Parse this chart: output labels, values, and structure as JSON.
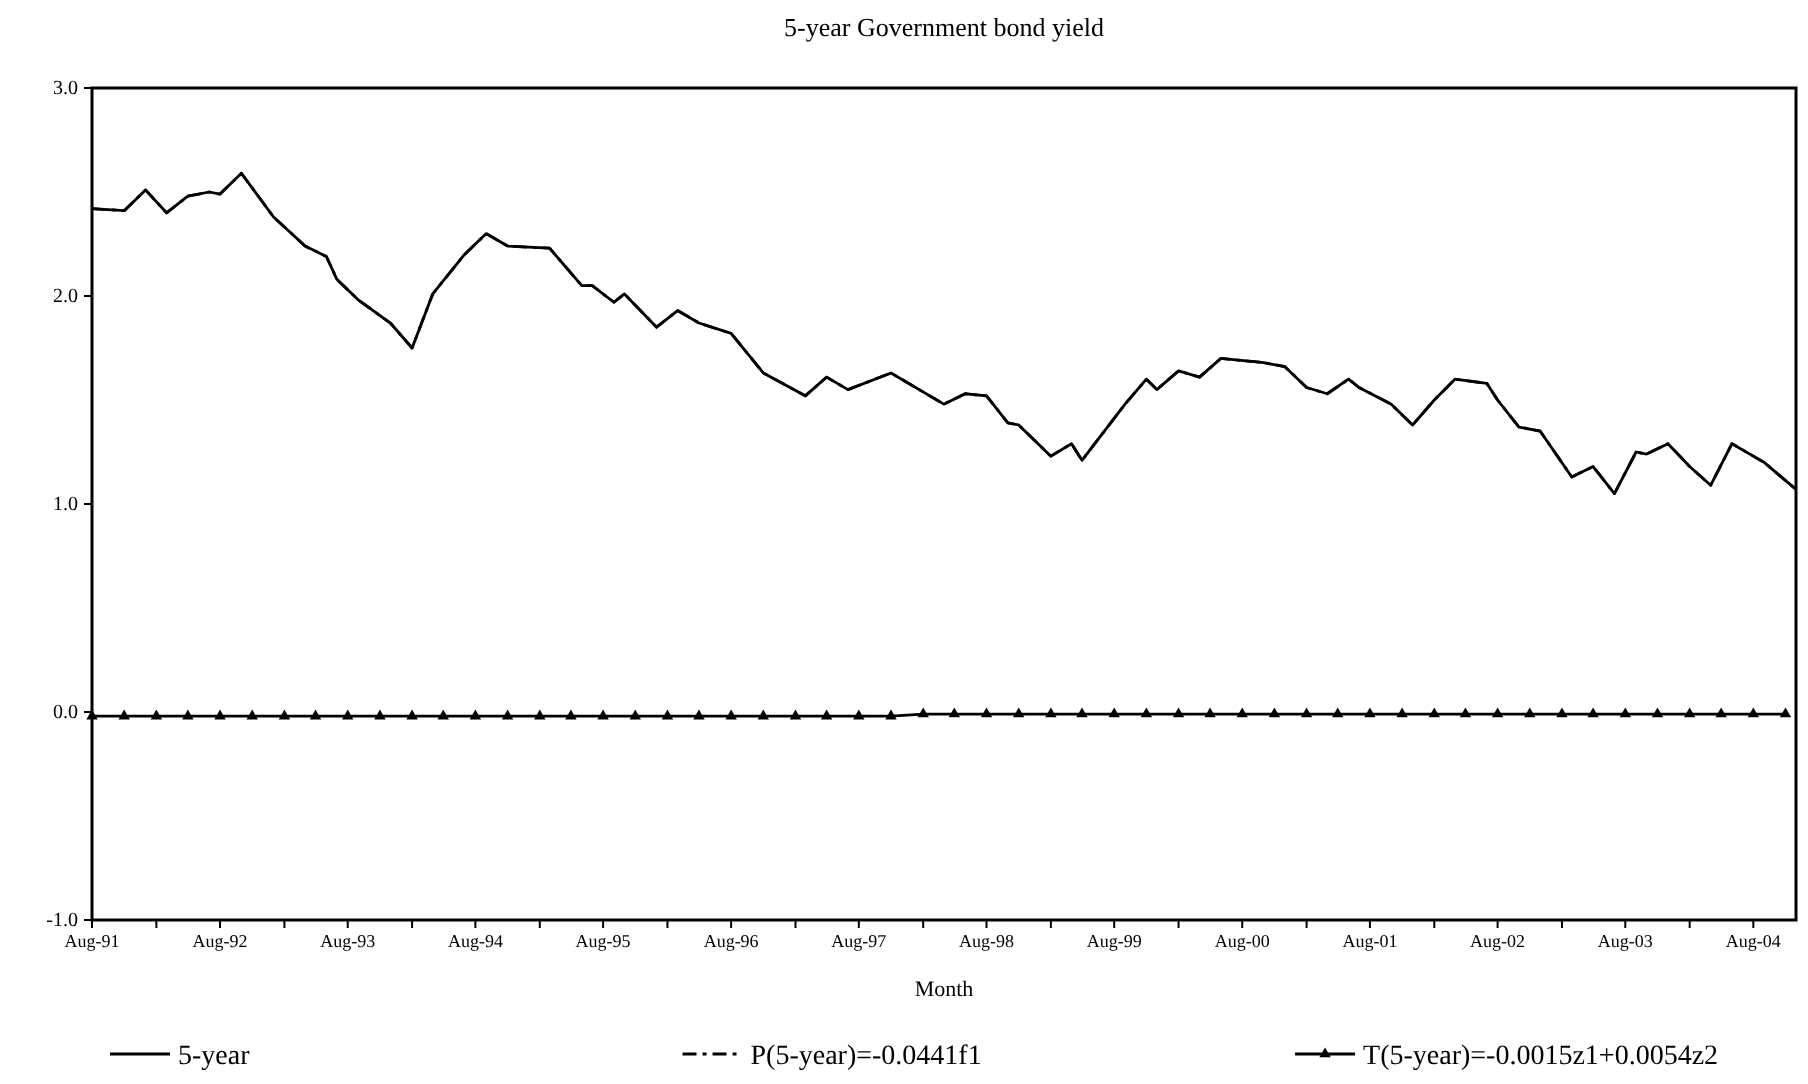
{
  "chart_data": {
    "type": "line",
    "title": "5-year Government bond yield",
    "xlabel": "Month",
    "xlim": [
      "1991-08",
      "2004-12"
    ],
    "xticks": [
      {
        "value": "1991-08",
        "label": "Aug-91"
      },
      {
        "value": "1992-02",
        "label": null
      },
      {
        "value": "1992-08",
        "label": "Aug-92"
      },
      {
        "value": "1993-02",
        "label": null
      },
      {
        "value": "1993-08",
        "label": "Aug-93"
      },
      {
        "value": "1994-02",
        "label": null
      },
      {
        "value": "1994-08",
        "label": "Aug-94"
      },
      {
        "value": "1995-02",
        "label": null
      },
      {
        "value": "1995-08",
        "label": "Aug-95"
      },
      {
        "value": "1996-02",
        "label": null
      },
      {
        "value": "1996-08",
        "label": "Aug-96"
      },
      {
        "value": "1997-02",
        "label": null
      },
      {
        "value": "1997-08",
        "label": "Aug-97"
      },
      {
        "value": "1998-02",
        "label": null
      },
      {
        "value": "1998-08",
        "label": "Aug-98"
      },
      {
        "value": "1999-02",
        "label": null
      },
      {
        "value": "1999-08",
        "label": "Aug-99"
      },
      {
        "value": "2000-02",
        "label": null
      },
      {
        "value": "2000-08",
        "label": "Aug-00"
      },
      {
        "value": "2001-02",
        "label": null
      },
      {
        "value": "2001-08",
        "label": "Aug-01"
      },
      {
        "value": "2002-02",
        "label": null
      },
      {
        "value": "2002-08",
        "label": "Aug-02"
      },
      {
        "value": "2003-02",
        "label": null
      },
      {
        "value": "2003-08",
        "label": "Aug-03"
      },
      {
        "value": "2004-02",
        "label": null
      },
      {
        "value": "2004-08",
        "label": "Aug-04"
      }
    ],
    "ylim": [
      -1,
      3
    ],
    "yticks": [
      {
        "value": -1,
        "label": "-1.0"
      },
      {
        "value": 0,
        "label": "0.0"
      },
      {
        "value": 1,
        "label": "1.0"
      },
      {
        "value": 2,
        "label": "2.0"
      },
      {
        "value": 3,
        "label": "3.0"
      }
    ],
    "grid": false,
    "legend": "bottom",
    "series": [
      {
        "name": "5-year",
        "color": "#000000",
        "line_style": "solid",
        "marker": "none",
        "x": [
          "1991-08",
          "1991-11",
          "1992-01",
          "1992-03",
          "1992-05",
          "1992-07",
          "1992-08",
          "1992-10",
          "1993-01",
          "1993-04",
          "1993-06",
          "1993-07",
          "1993-09",
          "1993-12",
          "1994-02",
          "1994-04",
          "1994-07",
          "1994-09",
          "1994-11",
          "1995-03",
          "1995-06",
          "1995-07",
          "1995-09",
          "1995-10",
          "1996-01",
          "1996-03",
          "1996-05",
          "1996-08",
          "1996-11",
          "1997-03",
          "1997-05",
          "1997-07",
          "1997-11",
          "1998-04",
          "1998-06",
          "1998-08",
          "1998-10",
          "1998-11",
          "1999-02",
          "1999-04",
          "1999-05",
          "1999-09",
          "1999-11",
          "1999-12",
          "2000-02",
          "2000-04",
          "2000-06",
          "2000-10",
          "2000-12",
          "2001-02",
          "2001-04",
          "2001-06",
          "2001-07",
          "2001-10",
          "2001-12",
          "2002-02",
          "2002-04",
          "2002-07",
          "2002-08",
          "2002-10",
          "2002-12",
          "2003-03",
          "2003-05",
          "2003-07",
          "2003-09",
          "2003-10",
          "2003-12",
          "2004-02",
          "2004-04",
          "2004-06",
          "2004-09",
          "2004-12"
        ],
        "values": [
          2.42,
          2.41,
          2.51,
          2.4,
          2.48,
          2.5,
          2.49,
          2.59,
          2.38,
          2.24,
          2.19,
          2.08,
          1.98,
          1.87,
          1.75,
          2.01,
          2.2,
          2.3,
          2.24,
          2.23,
          2.05,
          2.05,
          1.97,
          2.01,
          1.85,
          1.93,
          1.87,
          1.82,
          1.63,
          1.52,
          1.61,
          1.55,
          1.63,
          1.48,
          1.53,
          1.52,
          1.39,
          1.38,
          1.23,
          1.29,
          1.21,
          1.48,
          1.6,
          1.55,
          1.64,
          1.61,
          1.7,
          1.68,
          1.66,
          1.56,
          1.53,
          1.6,
          1.56,
          1.48,
          1.38,
          1.5,
          1.6,
          1.58,
          1.5,
          1.37,
          1.35,
          1.13,
          1.18,
          1.05,
          1.25,
          1.24,
          1.29,
          1.18,
          1.09,
          1.29,
          1.2,
          1.07
        ]
      },
      {
        "name": "P(5-year)=-0.0441f1",
        "color": "#000000",
        "line_style": "dashed",
        "marker": "none",
        "x": [
          "1991-08",
          "1991-11",
          "1992-01",
          "1992-03",
          "1992-05",
          "1992-07",
          "1992-08",
          "1992-10",
          "1993-01",
          "1993-04",
          "1993-06",
          "1993-07",
          "1993-09",
          "1993-12",
          "1994-02",
          "1994-04",
          "1994-07",
          "1994-09",
          "1994-11",
          "1995-03",
          "1995-06",
          "1995-07",
          "1995-09",
          "1995-10",
          "1996-01",
          "1996-03",
          "1996-05",
          "1996-08",
          "1996-11",
          "1997-03",
          "1997-05",
          "1997-07",
          "1997-11",
          "1998-04",
          "1998-06",
          "1998-08",
          "1998-10",
          "1998-11",
          "1999-02",
          "1999-04",
          "1999-05",
          "1999-09",
          "1999-11",
          "1999-12",
          "2000-02",
          "2000-04",
          "2000-06",
          "2000-10",
          "2000-12",
          "2001-02",
          "2001-04",
          "2001-06",
          "2001-07",
          "2001-10",
          "2001-12",
          "2002-02",
          "2002-04",
          "2002-07",
          "2002-08",
          "2002-10",
          "2002-12",
          "2003-03",
          "2003-05",
          "2003-07",
          "2003-09",
          "2003-10",
          "2003-12",
          "2004-02",
          "2004-04",
          "2004-06",
          "2004-09",
          "2004-12"
        ],
        "values": [
          2.42,
          2.41,
          2.51,
          2.4,
          2.48,
          2.5,
          2.49,
          2.59,
          2.38,
          2.24,
          2.19,
          2.08,
          1.98,
          1.87,
          1.75,
          2.01,
          2.2,
          2.3,
          2.24,
          2.23,
          2.05,
          2.05,
          1.97,
          2.01,
          1.85,
          1.93,
          1.87,
          1.82,
          1.63,
          1.52,
          1.61,
          1.55,
          1.63,
          1.48,
          1.53,
          1.52,
          1.39,
          1.38,
          1.23,
          1.29,
          1.21,
          1.48,
          1.6,
          1.55,
          1.64,
          1.61,
          1.7,
          1.68,
          1.66,
          1.56,
          1.53,
          1.6,
          1.56,
          1.48,
          1.38,
          1.5,
          1.6,
          1.58,
          1.5,
          1.37,
          1.35,
          1.13,
          1.18,
          1.05,
          1.25,
          1.24,
          1.29,
          1.18,
          1.09,
          1.29,
          1.2,
          1.07
        ]
      },
      {
        "name": "T(5-year)=-0.0015z1+0.0054z2",
        "color": "#000000",
        "line_style": "solid",
        "marker": "triangle",
        "x": [
          "1991-08",
          "1991-11",
          "1992-02",
          "1992-05",
          "1992-08",
          "1992-11",
          "1993-02",
          "1993-05",
          "1993-08",
          "1993-11",
          "1994-02",
          "1994-05",
          "1994-08",
          "1994-11",
          "1995-02",
          "1995-05",
          "1995-08",
          "1995-11",
          "1996-02",
          "1996-05",
          "1996-08",
          "1996-11",
          "1997-02",
          "1997-05",
          "1997-08",
          "1997-11",
          "1998-02",
          "1998-05",
          "1998-08",
          "1998-11",
          "1999-02",
          "1999-05",
          "1999-08",
          "1999-11",
          "2000-02",
          "2000-05",
          "2000-08",
          "2000-11",
          "2001-02",
          "2001-05",
          "2001-08",
          "2001-11",
          "2002-02",
          "2002-05",
          "2002-08",
          "2002-11",
          "2003-02",
          "2003-05",
          "2003-08",
          "2003-11",
          "2004-02",
          "2004-05",
          "2004-08",
          "2004-11"
        ],
        "values": [
          -0.02,
          -0.02,
          -0.02,
          -0.02,
          -0.02,
          -0.02,
          -0.02,
          -0.02,
          -0.02,
          -0.02,
          -0.02,
          -0.02,
          -0.02,
          -0.02,
          -0.02,
          -0.02,
          -0.02,
          -0.02,
          -0.02,
          -0.02,
          -0.02,
          -0.02,
          -0.02,
          -0.02,
          -0.02,
          -0.02,
          -0.01,
          -0.01,
          -0.01,
          -0.01,
          -0.01,
          -0.01,
          -0.01,
          -0.01,
          -0.01,
          -0.01,
          -0.01,
          -0.01,
          -0.01,
          -0.01,
          -0.01,
          -0.01,
          -0.01,
          -0.01,
          -0.01,
          -0.01,
          -0.01,
          -0.01,
          -0.01,
          -0.01,
          -0.01,
          -0.01,
          -0.01,
          -0.01
        ]
      }
    ]
  }
}
